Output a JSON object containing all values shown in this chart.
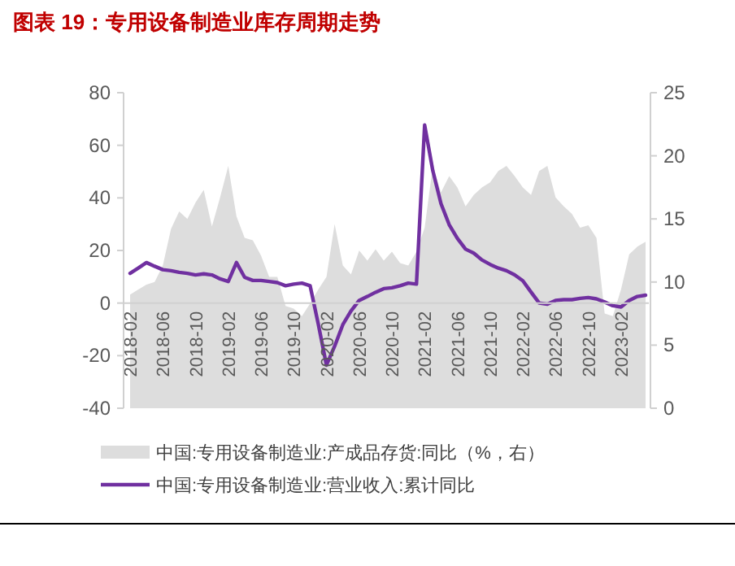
{
  "chart_data": {
    "type": "line",
    "title": "图表 19：专用设备制造业库存周期走势",
    "categories": [
      "2018-02",
      null,
      null,
      null,
      "2018-06",
      null,
      null,
      null,
      "2018-10",
      null,
      null,
      null,
      "2019-02",
      null,
      null,
      null,
      "2019-06",
      null,
      null,
      null,
      "2019-10",
      null,
      null,
      null,
      "2020-02",
      null,
      null,
      null,
      "2020-06",
      null,
      null,
      null,
      "2020-10",
      null,
      null,
      null,
      "2021-02",
      null,
      null,
      null,
      "2021-06",
      null,
      null,
      null,
      "2021-10",
      null,
      null,
      null,
      "2022-02",
      null,
      null,
      null,
      "2022-06",
      null,
      null,
      null,
      "2022-10",
      null,
      null,
      null,
      "2023-02",
      null,
      null,
      null
    ],
    "series": [
      {
        "name": "中国:专用设备制造业:产成品存货:同比（%，右）",
        "type": "area",
        "axis": "y2",
        "color": "#dddddd",
        "values": [
          9.0,
          9.4,
          9.8,
          10.0,
          11.3,
          14.2,
          15.6,
          15.0,
          16.3,
          17.3,
          14.4,
          16.7,
          19.2,
          15.2,
          13.5,
          13.3,
          12.1,
          10.4,
          10.4,
          8.1,
          7.9,
          7.3,
          8.3,
          9.4,
          10.4,
          14.6,
          11.3,
          10.6,
          12.5,
          11.7,
          12.6,
          11.7,
          12.4,
          11.5,
          11.3,
          12.4,
          14.3,
          19.2,
          17.1,
          18.4,
          17.5,
          16.0,
          16.9,
          17.5,
          17.9,
          18.8,
          19.2,
          18.4,
          17.5,
          16.9,
          18.8,
          19.2,
          16.7,
          16.0,
          15.4,
          14.3,
          14.5,
          13.5,
          7.5,
          7.3,
          9.4,
          12.2,
          12.8,
          13.2
        ]
      },
      {
        "name": "中国:专用设备制造业:营业收入:累计同比",
        "color": "#7030a0",
        "values": [
          11.3,
          13.3,
          15.4,
          14,
          12.7,
          12.3,
          11.7,
          11.3,
          10.7,
          11.1,
          10.7,
          9.2,
          8.2,
          15.4,
          9.8,
          8.6,
          8.6,
          8.2,
          7.8,
          6.6,
          7.2,
          7.6,
          6.6,
          -8,
          -23.6,
          -16.4,
          -8.2,
          -3,
          1,
          2.5,
          4.1,
          5.5,
          5.8,
          6.6,
          7.6,
          7.2,
          67.7,
          50.3,
          37.8,
          29.8,
          24.6,
          20.5,
          19,
          16.4,
          14.7,
          13.3,
          12.3,
          10.7,
          8.5,
          4.2,
          0,
          -0.4,
          1,
          1.3,
          1.3,
          1.8,
          2.1,
          1.6,
          0.4,
          -1,
          -1.5,
          1,
          2.5,
          3
        ]
      }
    ],
    "ylim": [
      -40,
      80
    ],
    "yticks": [
      -40,
      -20,
      0,
      20,
      40,
      60,
      80
    ],
    "y2lim": [
      0,
      25
    ],
    "y2ticks": [
      0,
      5,
      10,
      15,
      20,
      25
    ],
    "legend": "bottom",
    "grid": false,
    "marker": "none",
    "line_style": "solid"
  }
}
